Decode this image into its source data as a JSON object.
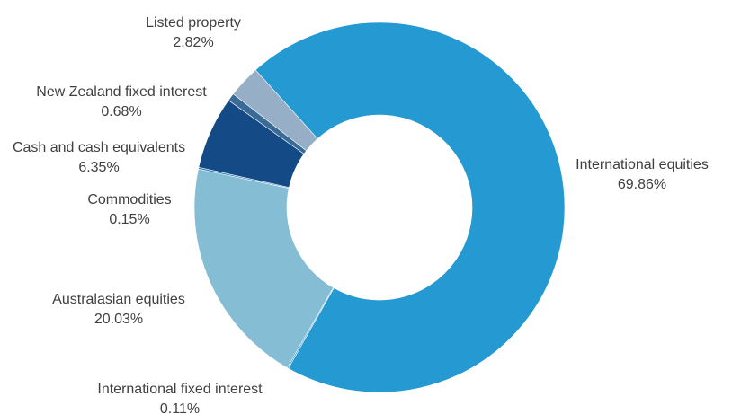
{
  "chart_data": {
    "type": "pie",
    "subtype": "donut",
    "title": "",
    "legend": "none",
    "categories": [
      "International equities",
      "International fixed interest",
      "Australasian equities",
      "Commodities",
      "Cash and cash equivalents",
      "New Zealand fixed interest",
      "Listed property"
    ],
    "values": [
      69.86,
      0.11,
      20.03,
      0.15,
      6.35,
      0.68,
      2.82
    ],
    "value_labels": [
      "69.86%",
      "0.11%",
      "20.03%",
      "0.15%",
      "6.35%",
      "0.68%",
      "2.82%"
    ],
    "colors": [
      "#2599D1",
      "#1E8AC0",
      "#85BDD4",
      "#2E7BB4",
      "#144B86",
      "#3A6A96",
      "#96AFC6"
    ]
  }
}
